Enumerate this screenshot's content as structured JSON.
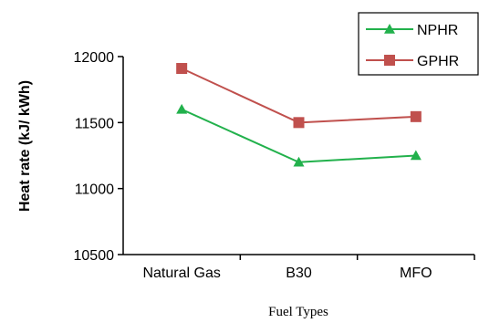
{
  "chart_data": {
    "type": "line",
    "title": "",
    "xlabel": "Fuel Types",
    "ylabel": "Heat rate (kJ/ kWh)",
    "categories": [
      "Natural Gas",
      "B30",
      "MFO"
    ],
    "ylim": [
      10500,
      12000
    ],
    "yticks": [
      10500,
      11000,
      11500,
      12000
    ],
    "grid": false,
    "legend_position": "top-right",
    "series": [
      {
        "name": "NPHR",
        "values": [
          11600,
          11200,
          11250
        ],
        "color": "#22b14c",
        "marker": "triangle"
      },
      {
        "name": "GPHR",
        "values": [
          11910,
          11500,
          11545
        ],
        "color": "#c0504d",
        "marker": "square"
      }
    ]
  }
}
